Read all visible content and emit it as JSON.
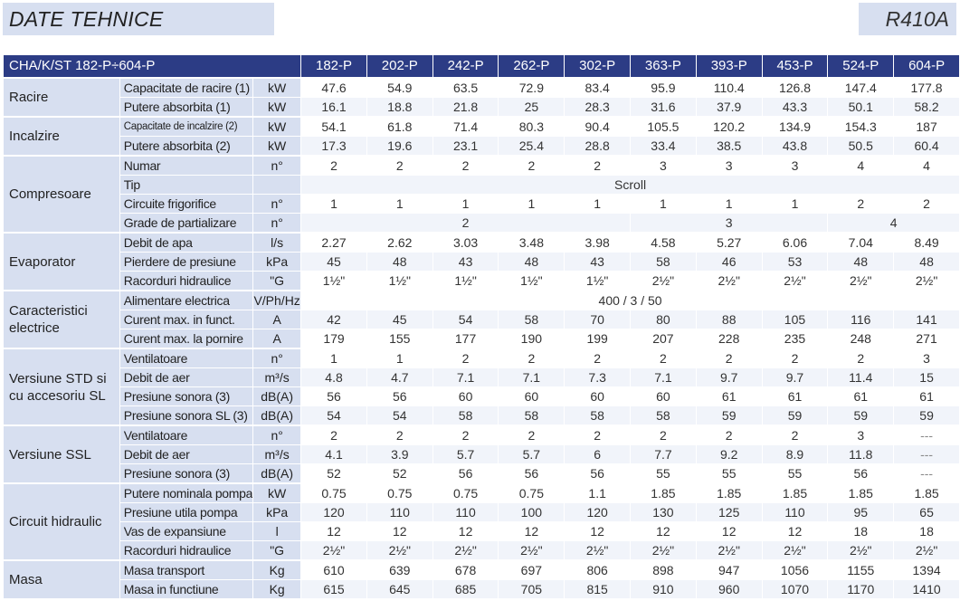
{
  "header": {
    "title": "DATE TEHNICE",
    "refrigerant": "R410A"
  },
  "table": {
    "model_label": "CHA/K/ST 182-P÷604-P",
    "models": [
      "182-P",
      "202-P",
      "242-P",
      "262-P",
      "302-P",
      "363-P",
      "393-P",
      "453-P",
      "524-P",
      "604-P"
    ],
    "groups": [
      {
        "name": "Racire",
        "rows": [
          {
            "param": "Capacitate de racire (1)",
            "unit": "kW",
            "values": [
              "47.6",
              "54.9",
              "63.5",
              "72.9",
              "83.4",
              "95.9",
              "110.4",
              "126.8",
              "147.4",
              "177.8"
            ]
          },
          {
            "param": "Putere absorbita (1)",
            "unit": "kW",
            "values": [
              "16.1",
              "18.8",
              "21.8",
              "25",
              "28.3",
              "31.6",
              "37.9",
              "43.3",
              "50.1",
              "58.2"
            ]
          }
        ]
      },
      {
        "name": "Incalzire",
        "rows": [
          {
            "param": "Capacitate de incalzire (2)",
            "unit": "kW",
            "small": true,
            "values": [
              "54.1",
              "61.8",
              "71.4",
              "80.3",
              "90.4",
              "105.5",
              "120.2",
              "134.9",
              "154.3",
              "187"
            ]
          },
          {
            "param": "Putere absorbita (2)",
            "unit": "kW",
            "values": [
              "17.3",
              "19.6",
              "23.1",
              "25.4",
              "28.8",
              "33.4",
              "38.5",
              "43.8",
              "50.5",
              "60.4"
            ]
          }
        ]
      },
      {
        "name": "Compresoare",
        "rows": [
          {
            "param": "Numar",
            "unit": "n°",
            "values": [
              "2",
              "2",
              "2",
              "2",
              "2",
              "3",
              "3",
              "3",
              "4",
              "4"
            ]
          },
          {
            "param": "Tip",
            "unit": "",
            "spans": [
              {
                "span": 10,
                "value": "Scroll"
              }
            ]
          },
          {
            "param": "Circuite frigorifice",
            "unit": "n°",
            "values": [
              "1",
              "1",
              "1",
              "1",
              "1",
              "1",
              "1",
              "1",
              "2",
              "2"
            ]
          },
          {
            "param": "Grade de partializare",
            "unit": "n°",
            "spans": [
              {
                "span": 5,
                "value": "2"
              },
              {
                "span": 3,
                "value": "3"
              },
              {
                "span": 2,
                "value": "4"
              }
            ]
          }
        ]
      },
      {
        "name": "Evaporator",
        "rows": [
          {
            "param": "Debit de apa",
            "unit": "l/s",
            "values": [
              "2.27",
              "2.62",
              "3.03",
              "3.48",
              "3.98",
              "4.58",
              "5.27",
              "6.06",
              "7.04",
              "8.49"
            ]
          },
          {
            "param": "Pierdere de presiune",
            "unit": "kPa",
            "values": [
              "45",
              "48",
              "43",
              "48",
              "43",
              "58",
              "46",
              "53",
              "48",
              "48"
            ]
          },
          {
            "param": "Racorduri hidraulice",
            "unit": "\"G",
            "values": [
              "1½\"",
              "1½\"",
              "1½\"",
              "1½\"",
              "1½\"",
              "2½\"",
              "2½\"",
              "2½\"",
              "2½\"",
              "2½\""
            ]
          }
        ]
      },
      {
        "name": "Caracteristici electrice",
        "rows": [
          {
            "param": "Alimentare electrica",
            "unit": "V/Ph/Hz",
            "spans": [
              {
                "span": 10,
                "value": "400 / 3 / 50"
              }
            ]
          },
          {
            "param": "Curent max. in funct.",
            "unit": "A",
            "values": [
              "42",
              "45",
              "54",
              "58",
              "70",
              "80",
              "88",
              "105",
              "116",
              "141"
            ]
          },
          {
            "param": "Curent max. la pornire",
            "unit": "A",
            "values": [
              "179",
              "155",
              "177",
              "190",
              "199",
              "207",
              "228",
              "235",
              "248",
              "271"
            ]
          }
        ]
      },
      {
        "name": "Versiune STD si cu accesoriu SL",
        "rows": [
          {
            "param": "Ventilatoare",
            "unit": "n°",
            "values": [
              "1",
              "1",
              "2",
              "2",
              "2",
              "2",
              "2",
              "2",
              "2",
              "3"
            ]
          },
          {
            "param": "Debit de aer",
            "unit": "m³/s",
            "values": [
              "4.8",
              "4.7",
              "7.1",
              "7.1",
              "7.3",
              "7.1",
              "9.7",
              "9.7",
              "11.4",
              "15"
            ]
          },
          {
            "param": "Presiune sonora (3)",
            "unit": "dB(A)",
            "values": [
              "56",
              "56",
              "60",
              "60",
              "60",
              "60",
              "61",
              "61",
              "61",
              "61"
            ]
          },
          {
            "param": "Presiune sonora SL (3)",
            "unit": "dB(A)",
            "values": [
              "54",
              "54",
              "58",
              "58",
              "58",
              "58",
              "59",
              "59",
              "59",
              "59"
            ]
          }
        ]
      },
      {
        "name": "Versiune SSL",
        "rows": [
          {
            "param": "Ventilatoare",
            "unit": "n°",
            "values": [
              "2",
              "2",
              "2",
              "2",
              "2",
              "2",
              "2",
              "2",
              "3",
              "---"
            ]
          },
          {
            "param": "Debit de aer",
            "unit": "m³/s",
            "values": [
              "4.1",
              "3.9",
              "5.7",
              "5.7",
              "6",
              "7.7",
              "9.2",
              "8.9",
              "11.8",
              "---"
            ]
          },
          {
            "param": "Presiune sonora (3)",
            "unit": "dB(A)",
            "values": [
              "52",
              "52",
              "56",
              "56",
              "56",
              "55",
              "55",
              "55",
              "56",
              "---"
            ]
          }
        ]
      },
      {
        "name": "Circuit hidraulic",
        "rows": [
          {
            "param": "Putere nominala pompa",
            "unit": "kW",
            "values": [
              "0.75",
              "0.75",
              "0.75",
              "0.75",
              "1.1",
              "1.85",
              "1.85",
              "1.85",
              "1.85",
              "1.85"
            ]
          },
          {
            "param": "Presiune utila pompa",
            "unit": "kPa",
            "values": [
              "120",
              "110",
              "110",
              "100",
              "120",
              "130",
              "125",
              "110",
              "95",
              "65"
            ]
          },
          {
            "param": "Vas de expansiune",
            "unit": "l",
            "values": [
              "12",
              "12",
              "12",
              "12",
              "12",
              "12",
              "12",
              "12",
              "18",
              "18"
            ]
          },
          {
            "param": "Racorduri hidraulice",
            "unit": "\"G",
            "values": [
              "2½\"",
              "2½\"",
              "2½\"",
              "2½\"",
              "2½\"",
              "2½\"",
              "2½\"",
              "2½\"",
              "2½\"",
              "2½\""
            ]
          }
        ]
      },
      {
        "name": "Masa",
        "rows": [
          {
            "param": "Masa transport",
            "unit": "Kg",
            "values": [
              "610",
              "639",
              "678",
              "697",
              "806",
              "898",
              "947",
              "1056",
              "1155",
              "1394"
            ]
          },
          {
            "param": "Masa in functiune",
            "unit": "Kg",
            "values": [
              "615",
              "645",
              "685",
              "705",
              "815",
              "910",
              "960",
              "1070",
              "1170",
              "1410"
            ]
          }
        ]
      }
    ]
  }
}
